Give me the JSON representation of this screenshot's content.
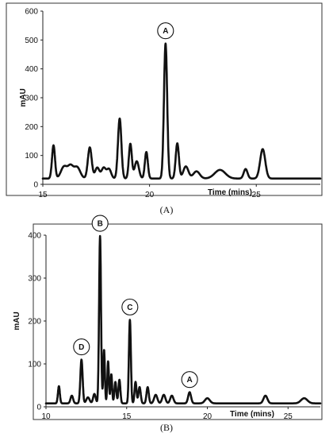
{
  "chart_data": [
    {
      "type": "line",
      "panel_label": "(A)",
      "xlabel": "Time (mins)",
      "ylabel": "mAU",
      "xlim": [
        15,
        28
      ],
      "ylim": [
        0,
        600
      ],
      "x_ticks": [
        15,
        20,
        25
      ],
      "y_ticks": [
        0,
        100,
        200,
        300,
        400,
        500,
        600
      ],
      "baseline": 20,
      "peaks": [
        {
          "x": 15.5,
          "y": 115,
          "w": 0.07
        },
        {
          "x": 16.0,
          "y": 42,
          "w": 0.15
        },
        {
          "x": 16.3,
          "y": 38,
          "w": 0.12
        },
        {
          "x": 16.6,
          "y": 40,
          "w": 0.15
        },
        {
          "x": 17.2,
          "y": 108,
          "w": 0.09
        },
        {
          "x": 17.55,
          "y": 38,
          "w": 0.1
        },
        {
          "x": 17.85,
          "y": 37,
          "w": 0.1
        },
        {
          "x": 18.1,
          "y": 33,
          "w": 0.1
        },
        {
          "x": 18.6,
          "y": 208,
          "w": 0.08
        },
        {
          "x": 19.1,
          "y": 120,
          "w": 0.07
        },
        {
          "x": 19.4,
          "y": 60,
          "w": 0.1
        },
        {
          "x": 19.85,
          "y": 92,
          "w": 0.07
        },
        {
          "x": 20.75,
          "y": 468,
          "w": 0.075,
          "label": "A"
        },
        {
          "x": 21.3,
          "y": 122,
          "w": 0.075
        },
        {
          "x": 21.7,
          "y": 42,
          "w": 0.12
        },
        {
          "x": 22.2,
          "y": 25,
          "w": 0.15
        },
        {
          "x": 23.3,
          "y": 30,
          "w": 0.25
        },
        {
          "x": 24.5,
          "y": 33,
          "w": 0.09
        },
        {
          "x": 25.3,
          "y": 102,
          "w": 0.12
        }
      ]
    },
    {
      "type": "line",
      "panel_label": "(B)",
      "xlabel": "Time (mins)",
      "ylabel": "mAU",
      "xlim": [
        10,
        27
      ],
      "ylim": [
        0,
        400
      ],
      "x_ticks": [
        10,
        15,
        20,
        25
      ],
      "y_ticks": [
        0,
        100,
        200,
        300,
        400
      ],
      "baseline": 8,
      "peaks": [
        {
          "x": 10.8,
          "y": 40,
          "w": 0.06
        },
        {
          "x": 11.6,
          "y": 18,
          "w": 0.08
        },
        {
          "x": 12.2,
          "y": 102,
          "w": 0.07,
          "label": "D"
        },
        {
          "x": 12.6,
          "y": 14,
          "w": 0.1
        },
        {
          "x": 13.0,
          "y": 22,
          "w": 0.08
        },
        {
          "x": 13.35,
          "y": 390,
          "w": 0.06,
          "label": "B"
        },
        {
          "x": 13.6,
          "y": 125,
          "w": 0.05
        },
        {
          "x": 13.85,
          "y": 98,
          "w": 0.05
        },
        {
          "x": 14.05,
          "y": 68,
          "w": 0.05
        },
        {
          "x": 14.3,
          "y": 50,
          "w": 0.06
        },
        {
          "x": 14.55,
          "y": 55,
          "w": 0.06
        },
        {
          "x": 15.2,
          "y": 195,
          "w": 0.06,
          "label": "C"
        },
        {
          "x": 15.55,
          "y": 50,
          "w": 0.06
        },
        {
          "x": 15.8,
          "y": 38,
          "w": 0.07
        },
        {
          "x": 16.3,
          "y": 38,
          "w": 0.07
        },
        {
          "x": 16.8,
          "y": 20,
          "w": 0.1
        },
        {
          "x": 17.3,
          "y": 20,
          "w": 0.1
        },
        {
          "x": 17.8,
          "y": 18,
          "w": 0.1
        },
        {
          "x": 18.9,
          "y": 26,
          "w": 0.09,
          "label": "A"
        },
        {
          "x": 20.0,
          "y": 12,
          "w": 0.15
        },
        {
          "x": 23.6,
          "y": 18,
          "w": 0.12
        },
        {
          "x": 26.0,
          "y": 12,
          "w": 0.2
        }
      ]
    }
  ]
}
